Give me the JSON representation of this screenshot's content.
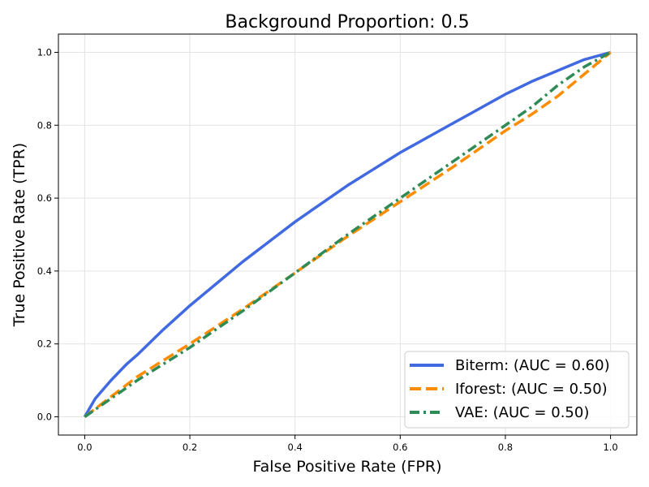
{
  "chart_data": {
    "type": "line",
    "title": "Background Proportion: 0.5",
    "xlabel": "False Positive Rate (FPR)",
    "ylabel": "True Positive Rate (TPR)",
    "xlim": [
      -0.05,
      1.05
    ],
    "ylim": [
      -0.05,
      1.05
    ],
    "xticks": [
      "0.0",
      "0.2",
      "0.4",
      "0.6",
      "0.8",
      "1.0"
    ],
    "yticks": [
      "0.0",
      "0.2",
      "0.4",
      "0.6",
      "0.8",
      "1.0"
    ],
    "grid": true,
    "legend_position": "bottom-right",
    "series": [
      {
        "name": "Biterm",
        "label": "Biterm: (AUC = 0.60)",
        "color": "#4169e1",
        "style": "solid",
        "x": [
          0,
          0.02,
          0.05,
          0.08,
          0.1,
          0.15,
          0.2,
          0.25,
          0.3,
          0.35,
          0.4,
          0.45,
          0.5,
          0.55,
          0.6,
          0.65,
          0.7,
          0.75,
          0.8,
          0.85,
          0.9,
          0.95,
          1.0
        ],
        "y": [
          0,
          0.05,
          0.1,
          0.145,
          0.17,
          0.24,
          0.305,
          0.365,
          0.425,
          0.48,
          0.535,
          0.585,
          0.635,
          0.68,
          0.725,
          0.765,
          0.805,
          0.845,
          0.885,
          0.92,
          0.95,
          0.98,
          1.0
        ]
      },
      {
        "name": "Iforest",
        "label": "Iforest: (AUC = 0.50)",
        "color": "#ff8c00",
        "style": "dashed",
        "x": [
          0,
          0.05,
          0.1,
          0.15,
          0.2,
          0.3,
          0.4,
          0.5,
          0.6,
          0.7,
          0.8,
          0.85,
          0.9,
          0.95,
          1.0
        ],
        "y": [
          0,
          0.055,
          0.11,
          0.155,
          0.2,
          0.295,
          0.395,
          0.495,
          0.59,
          0.685,
          0.785,
          0.83,
          0.88,
          0.94,
          1.0
        ]
      },
      {
        "name": "VAE",
        "label": "VAE: (AUC = 0.50)",
        "color": "#2e8b57",
        "style": "dashdot",
        "x": [
          0,
          0.05,
          0.1,
          0.15,
          0.2,
          0.3,
          0.4,
          0.5,
          0.6,
          0.7,
          0.8,
          0.85,
          0.9,
          0.95,
          1.0
        ],
        "y": [
          0,
          0.05,
          0.1,
          0.145,
          0.19,
          0.29,
          0.395,
          0.5,
          0.6,
          0.7,
          0.8,
          0.85,
          0.91,
          0.96,
          1.0
        ]
      }
    ]
  }
}
